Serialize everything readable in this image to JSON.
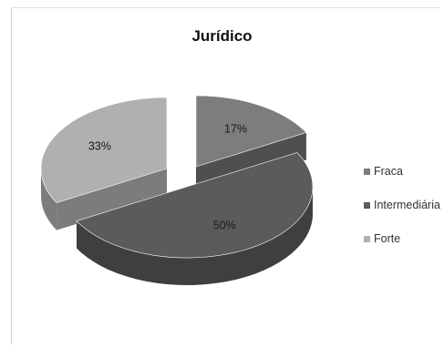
{
  "chart_data": {
    "type": "pie",
    "title": "Jurídico",
    "categories": [
      "Fraca",
      "Intermediária",
      "Forte"
    ],
    "values": [
      17,
      50,
      33
    ],
    "labels": [
      "17%",
      "50%",
      "33%"
    ],
    "colors": [
      "#7d7d7d",
      "#5b5b5b",
      "#b0b0b0"
    ],
    "side_colors": [
      "#4f4f4f",
      "#3f3f3f",
      "#7c7c7c"
    ],
    "three_d": true,
    "exploded": true,
    "legend_position": "right"
  }
}
